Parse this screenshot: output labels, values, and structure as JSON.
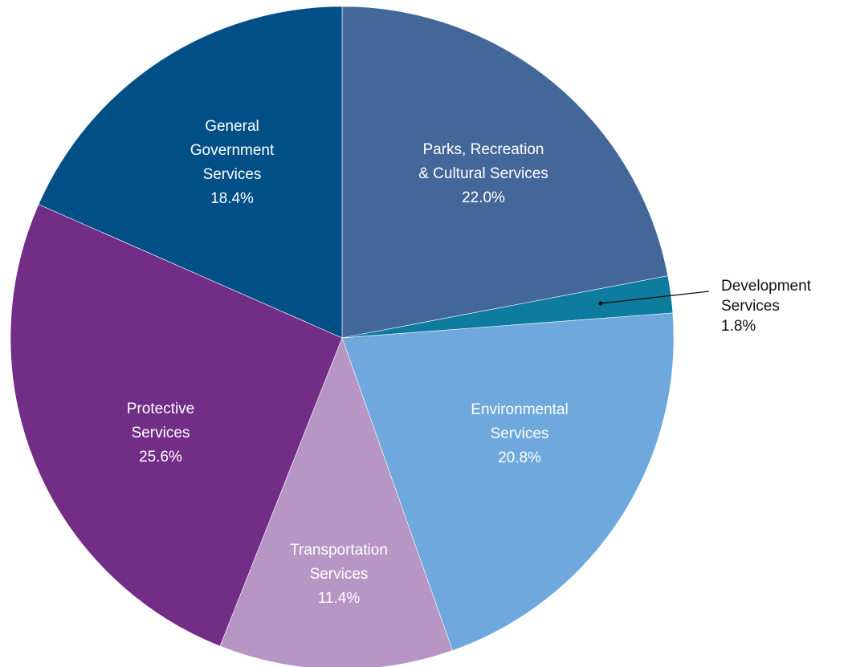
{
  "chart_data": {
    "type": "pie",
    "start_angle_deg": 0,
    "direction": "clockwise",
    "slices": [
      {
        "id": "parks",
        "lines": [
          "Parks, Recreation",
          "& Cultural Services"
        ],
        "value_label": "22.0%",
        "value": 22.0,
        "color": "#44679A",
        "label_position": "inside"
      },
      {
        "id": "development",
        "lines": [
          "Development",
          "Services"
        ],
        "value_label": "1.8%",
        "value": 1.8,
        "color": "#0E7C9E",
        "label_position": "outside"
      },
      {
        "id": "environmental",
        "lines": [
          "Environmental",
          "Services"
        ],
        "value_label": "20.8%",
        "value": 20.8,
        "color": "#6FA8DC",
        "label_position": "inside"
      },
      {
        "id": "transportation",
        "lines": [
          "Transportation",
          "Services"
        ],
        "value_label": "11.4%",
        "value": 11.4,
        "color": "#B795C4",
        "label_position": "inside"
      },
      {
        "id": "protective",
        "lines": [
          "Protective",
          "Services"
        ],
        "value_label": "25.6%",
        "value": 25.6,
        "color": "#722D87",
        "label_position": "inside"
      },
      {
        "id": "general",
        "lines": [
          "General",
          "Government",
          "Services"
        ],
        "value_label": "18.4%",
        "value": 18.4,
        "color": "#004F86",
        "label_position": "inside"
      }
    ],
    "legend": "none"
  }
}
